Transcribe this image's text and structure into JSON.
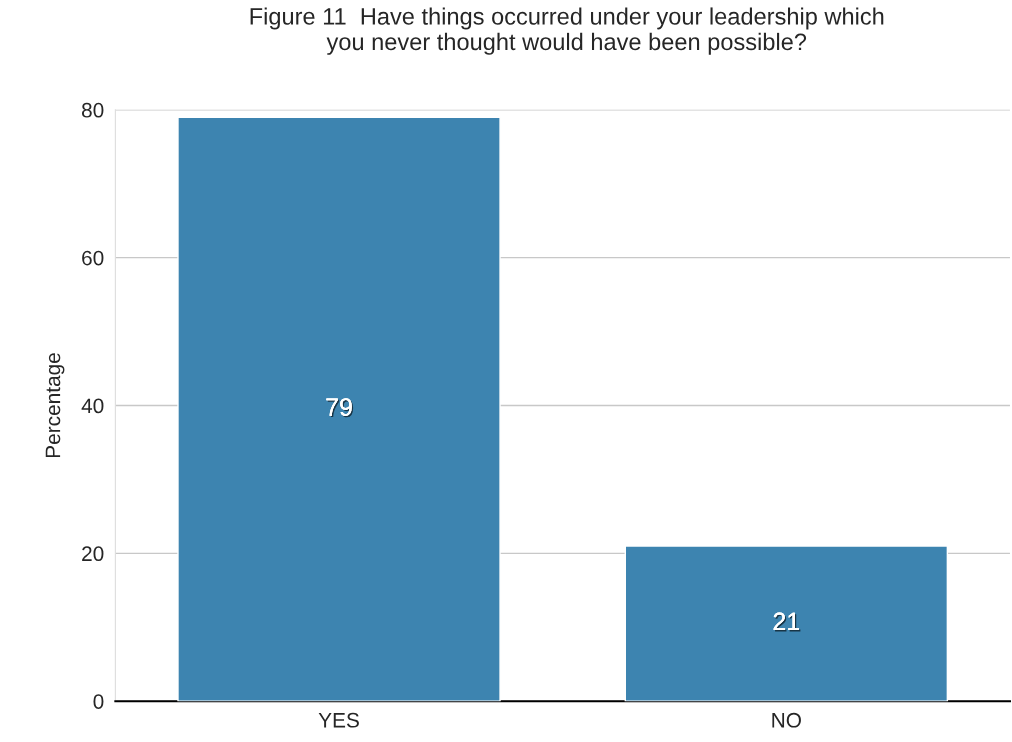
{
  "chart_data": {
    "type": "bar",
    "title": "Figure 11  Have things occurred under your leadership which\nyou never thought would have been possible?",
    "ylabel": "Percentage",
    "categories": [
      "YES",
      "NO"
    ],
    "values": [
      79,
      21
    ],
    "color": "#3d84b0",
    "ylim": [
      0,
      80
    ],
    "yticks": [
      0,
      20,
      40,
      60,
      80
    ],
    "grid": "y",
    "data_labels": true
  }
}
